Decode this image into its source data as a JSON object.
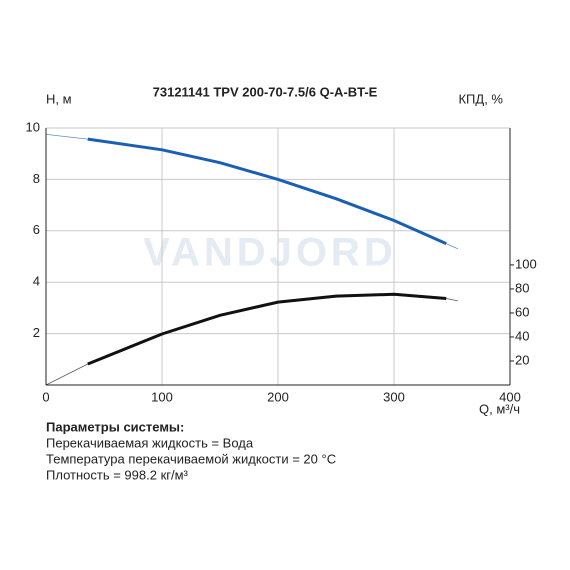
{
  "chart_data": {
    "type": "line",
    "title": "73121141 TPV 200-70-7.5/6 Q-A-BT-E",
    "watermark": "VANDJORD",
    "ylabel": "H, м",
    "y2label": "КПД, %",
    "xlabel": "Q, м³/ч",
    "x": [
      0,
      36,
      100,
      150,
      200,
      250,
      300,
      345,
      355
    ],
    "xlim": [
      0,
      400
    ],
    "xticks": [
      0,
      100,
      200,
      300,
      400
    ],
    "ylim": [
      0,
      10
    ],
    "yticks": [
      2,
      4,
      6,
      8,
      10
    ],
    "y2lim": [
      0,
      214
    ],
    "y2ticks": [
      20,
      40,
      60,
      80,
      100
    ],
    "grid": true,
    "series": [
      {
        "color": "#1a5fb4",
        "values": [
          9.75,
          9.57,
          9.15,
          8.65,
          8.0,
          7.25,
          6.4,
          5.5,
          5.3
        ]
      },
      {
        "color": "#111111",
        "axis": "y2",
        "values": [
          0,
          17.5,
          42.5,
          58,
          69,
          74,
          75.5,
          72,
          70
        ]
      }
    ]
  },
  "parameters": {
    "heading": "Параметры системы:",
    "lines": [
      "Перекачиваемая жидкость = Вода",
      "Температура перекачиваемой жидкости = 20 °C",
      "Плотность = 998.2 кг/м³"
    ]
  }
}
